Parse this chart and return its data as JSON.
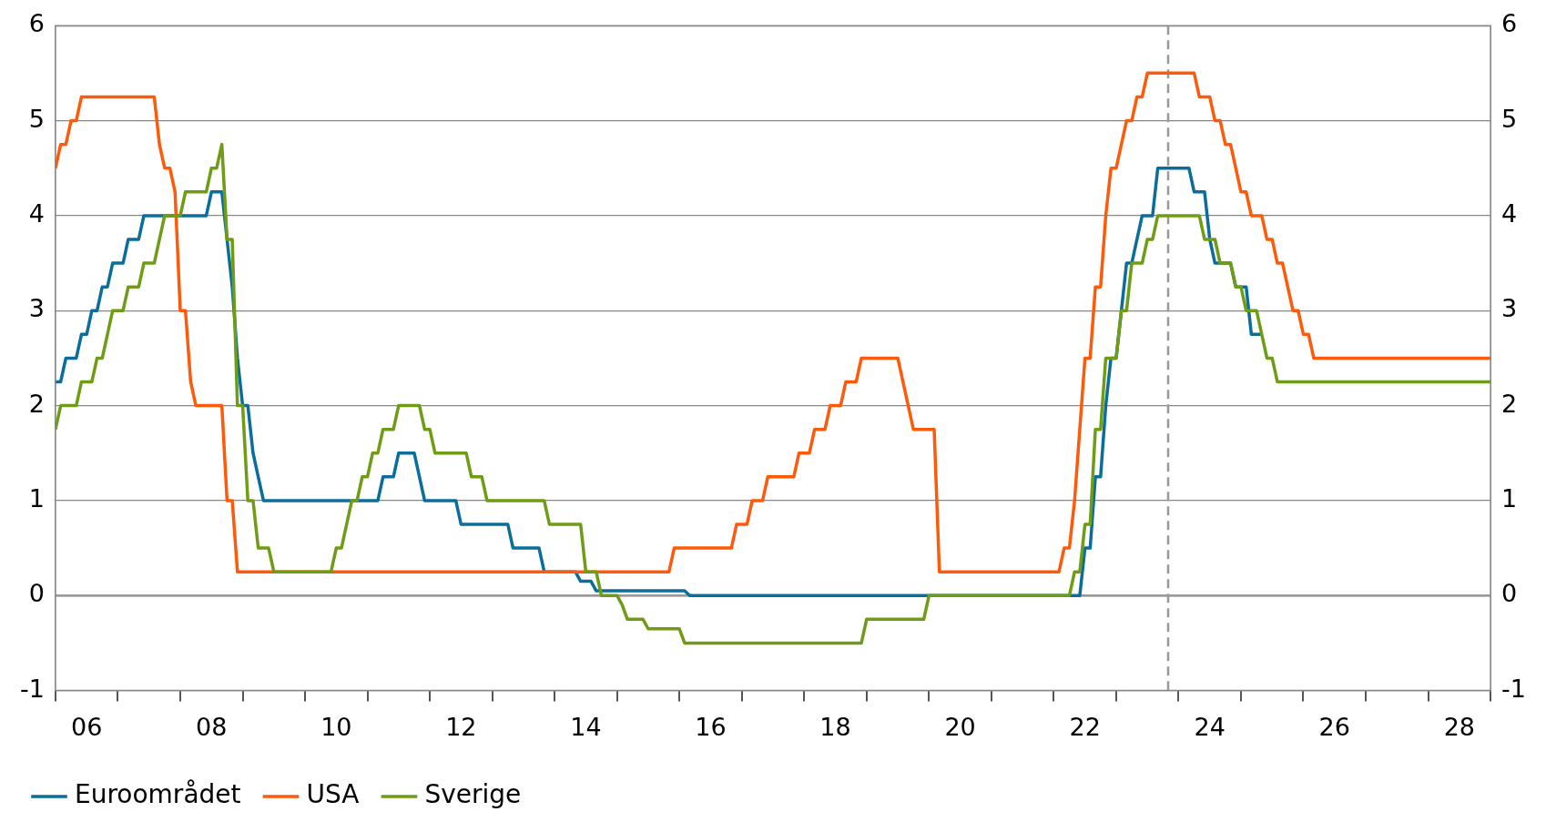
{
  "chart_data": {
    "type": "line",
    "series": [
      {
        "name": "Euroområdet",
        "color": "#0a6e9c",
        "x": [
          "2006-01",
          "2006-02",
          "2006-03",
          "2006-05",
          "2006-06",
          "2006-07",
          "2006-08",
          "2006-09",
          "2006-10",
          "2006-11",
          "2006-12",
          "2007-02",
          "2007-03",
          "2007-05",
          "2007-06",
          "2008-06",
          "2008-07",
          "2008-09",
          "2008-10",
          "2008-11",
          "2008-12",
          "2009-01",
          "2009-02",
          "2009-03",
          "2009-04",
          "2009-05",
          "2011-03",
          "2011-04",
          "2011-06",
          "2011-07",
          "2011-10",
          "2011-11",
          "2011-12",
          "2012-06",
          "2012-07",
          "2013-04",
          "2013-05",
          "2013-10",
          "2013-11",
          "2014-05",
          "2014-06",
          "2014-08",
          "2014-09",
          "2016-02",
          "2016-03",
          "2022-06",
          "2022-07",
          "2022-08",
          "2022-09",
          "2022-10",
          "2022-11",
          "2022-12",
          "2023-01",
          "2023-02",
          "2023-03",
          "2023-04",
          "2023-05",
          "2023-06",
          "2023-08",
          "2023-09",
          "2024-03",
          "2024-04",
          "2024-06",
          "2024-07",
          "2024-08",
          "2024-11",
          "2024-12",
          "2025-02",
          "2025-03",
          "2025-05"
        ],
        "values": [
          2.25,
          2.25,
          2.5,
          2.5,
          2.75,
          2.75,
          3.0,
          3.0,
          3.25,
          3.25,
          3.5,
          3.5,
          3.75,
          3.75,
          4.0,
          4.0,
          4.25,
          4.25,
          3.75,
          3.25,
          2.5,
          2.0,
          2.0,
          1.5,
          1.25,
          1.0,
          1.0,
          1.25,
          1.25,
          1.5,
          1.5,
          1.25,
          1.0,
          1.0,
          0.75,
          0.75,
          0.5,
          0.5,
          0.25,
          0.25,
          0.15,
          0.15,
          0.05,
          0.05,
          0.0,
          0.0,
          0.5,
          0.5,
          1.25,
          1.25,
          2.0,
          2.5,
          2.5,
          3.0,
          3.5,
          3.5,
          3.75,
          4.0,
          4.0,
          4.5,
          4.5,
          4.25,
          4.25,
          3.75,
          3.5,
          3.5,
          3.25,
          3.25,
          2.75,
          2.75
        ]
      },
      {
        "name": "USA",
        "color": "#ff5a0a",
        "x": [
          "2006-01",
          "2006-02",
          "2006-03",
          "2006-04",
          "2006-05",
          "2006-06",
          "2007-08",
          "2007-09",
          "2007-10",
          "2007-11",
          "2007-12",
          "2008-01",
          "2008-02",
          "2008-03",
          "2008-04",
          "2008-09",
          "2008-10",
          "2008-11",
          "2008-12",
          "2015-11",
          "2015-12",
          "2016-11",
          "2016-12",
          "2017-02",
          "2017-03",
          "2017-05",
          "2017-06",
          "2017-11",
          "2017-12",
          "2018-02",
          "2018-03",
          "2018-05",
          "2018-06",
          "2018-08",
          "2018-09",
          "2018-11",
          "2018-12",
          "2019-07",
          "2019-08",
          "2019-09",
          "2019-10",
          "2020-02",
          "2020-03",
          "2022-02",
          "2022-03",
          "2022-04",
          "2022-05",
          "2022-06",
          "2022-07",
          "2022-08",
          "2022-09",
          "2022-10",
          "2022-11",
          "2022-12",
          "2023-01",
          "2023-02",
          "2023-03",
          "2023-04",
          "2023-05",
          "2023-06",
          "2023-07",
          "2024-04",
          "2024-05",
          "2024-07",
          "2024-08",
          "2024-09",
          "2024-10",
          "2024-11",
          "2024-12",
          "2025-01",
          "2025-02",
          "2025-03",
          "2025-05",
          "2025-06",
          "2025-07",
          "2025-08",
          "2025-09",
          "2025-10",
          "2025-11",
          "2025-12",
          "2026-01",
          "2026-02",
          "2026-03",
          "2029-01"
        ],
        "values": [
          4.5,
          4.75,
          4.75,
          5.0,
          5.0,
          5.25,
          5.25,
          4.75,
          4.5,
          4.5,
          4.25,
          3.0,
          3.0,
          2.25,
          2.0,
          2.0,
          1.0,
          1.0,
          0.25,
          0.25,
          0.5,
          0.5,
          0.75,
          0.75,
          1.0,
          1.0,
          1.25,
          1.25,
          1.5,
          1.5,
          1.75,
          1.75,
          2.0,
          2.0,
          2.25,
          2.25,
          2.5,
          2.5,
          2.25,
          2.0,
          1.75,
          1.75,
          0.25,
          0.25,
          0.5,
          0.5,
          1.0,
          1.75,
          2.5,
          2.5,
          3.25,
          3.25,
          4.0,
          4.5,
          4.5,
          4.75,
          5.0,
          5.0,
          5.25,
          5.25,
          5.5,
          5.5,
          5.25,
          5.25,
          5.0,
          5.0,
          4.75,
          4.75,
          4.5,
          4.25,
          4.25,
          4.0,
          4.0,
          3.75,
          3.75,
          3.5,
          3.5,
          3.25,
          3.0,
          3.0,
          2.75,
          2.75,
          2.5,
          2.5
        ]
      },
      {
        "name": "Sverige",
        "color": "#6e9c14",
        "x": [
          "2006-01",
          "2006-02",
          "2006-05",
          "2006-06",
          "2006-08",
          "2006-09",
          "2006-10",
          "2006-11",
          "2006-12",
          "2007-02",
          "2007-03",
          "2007-05",
          "2007-06",
          "2007-08",
          "2007-09",
          "2007-10",
          "2008-01",
          "2008-02",
          "2008-06",
          "2008-07",
          "2008-08",
          "2008-09",
          "2008-10",
          "2008-11",
          "2008-12",
          "2009-01",
          "2009-02",
          "2009-03",
          "2009-04",
          "2009-06",
          "2009-07",
          "2010-06",
          "2010-07",
          "2010-08",
          "2010-09",
          "2010-10",
          "2010-11",
          "2010-12",
          "2011-01",
          "2011-02",
          "2011-03",
          "2011-04",
          "2011-06",
          "2011-07",
          "2011-11",
          "2011-12",
          "2012-01",
          "2012-02",
          "2012-08",
          "2012-09",
          "2012-11",
          "2012-12",
          "2013-11",
          "2013-12",
          "2014-06",
          "2014-07",
          "2014-09",
          "2014-10",
          "2015-01",
          "2015-02",
          "2015-03",
          "2015-06",
          "2015-07",
          "2016-01",
          "2016-02",
          "2018-12",
          "2019-01",
          "2019-12",
          "2020-01",
          "2022-04",
          "2022-05",
          "2022-06",
          "2022-07",
          "2022-08",
          "2022-09",
          "2022-10",
          "2022-11",
          "2023-01",
          "2023-02",
          "2023-03",
          "2023-04",
          "2023-06",
          "2023-07",
          "2023-08",
          "2023-09",
          "2024-05",
          "2024-06",
          "2024-08",
          "2024-09",
          "2024-11",
          "2024-12",
          "2025-01",
          "2025-02",
          "2025-04",
          "2025-05",
          "2025-06",
          "2025-07",
          "2025-08",
          "2029-01"
        ],
        "values": [
          1.75,
          2.0,
          2.0,
          2.25,
          2.25,
          2.5,
          2.5,
          2.75,
          3.0,
          3.0,
          3.25,
          3.25,
          3.5,
          3.5,
          3.75,
          4.0,
          4.0,
          4.25,
          4.25,
          4.5,
          4.5,
          4.75,
          3.75,
          3.75,
          2.0,
          2.0,
          1.0,
          1.0,
          0.5,
          0.5,
          0.25,
          0.25,
          0.5,
          0.5,
          0.75,
          1.0,
          1.0,
          1.25,
          1.25,
          1.5,
          1.5,
          1.75,
          1.75,
          2.0,
          2.0,
          1.75,
          1.75,
          1.5,
          1.5,
          1.25,
          1.25,
          1.0,
          1.0,
          0.75,
          0.75,
          0.25,
          0.25,
          0.0,
          0.0,
          -0.1,
          -0.25,
          -0.25,
          -0.35,
          -0.35,
          -0.5,
          -0.5,
          -0.25,
          -0.25,
          0.0,
          0.0,
          0.25,
          0.25,
          0.75,
          0.75,
          1.75,
          1.75,
          2.5,
          2.5,
          3.0,
          3.0,
          3.5,
          3.5,
          3.75,
          3.75,
          4.0,
          4.0,
          3.75,
          3.75,
          3.5,
          3.5,
          3.25,
          3.25,
          3.0,
          3.0,
          2.75,
          2.5,
          2.5,
          2.25,
          2.25
        ]
      }
    ],
    "xlim": [
      "2006-01",
      "2029-01"
    ],
    "xticks": [
      {
        "value": "2006-01",
        "label": null
      },
      {
        "value": "2006-07",
        "label": "06"
      },
      {
        "value": "2007-01",
        "label": null
      },
      {
        "value": "2008-01",
        "label": null
      },
      {
        "value": "2008-07",
        "label": "08"
      },
      {
        "value": "2009-01",
        "label": null
      },
      {
        "value": "2010-01",
        "label": null
      },
      {
        "value": "2010-07",
        "label": "10"
      },
      {
        "value": "2011-01",
        "label": null
      },
      {
        "value": "2012-01",
        "label": null
      },
      {
        "value": "2012-07",
        "label": "12"
      },
      {
        "value": "2013-01",
        "label": null
      },
      {
        "value": "2014-01",
        "label": null
      },
      {
        "value": "2014-07",
        "label": "14"
      },
      {
        "value": "2015-01",
        "label": null
      },
      {
        "value": "2016-01",
        "label": null
      },
      {
        "value": "2016-07",
        "label": "16"
      },
      {
        "value": "2017-01",
        "label": null
      },
      {
        "value": "2018-01",
        "label": null
      },
      {
        "value": "2018-07",
        "label": "18"
      },
      {
        "value": "2019-01",
        "label": null
      },
      {
        "value": "2020-01",
        "label": null
      },
      {
        "value": "2020-07",
        "label": "20"
      },
      {
        "value": "2021-01",
        "label": null
      },
      {
        "value": "2022-01",
        "label": null
      },
      {
        "value": "2022-07",
        "label": "22"
      },
      {
        "value": "2023-01",
        "label": null
      },
      {
        "value": "2024-01",
        "label": null
      },
      {
        "value": "2024-07",
        "label": "24"
      },
      {
        "value": "2025-01",
        "label": null
      },
      {
        "value": "2026-01",
        "label": null
      },
      {
        "value": "2026-07",
        "label": "26"
      },
      {
        "value": "2027-01",
        "label": null
      },
      {
        "value": "2028-01",
        "label": null
      },
      {
        "value": "2028-07",
        "label": "28"
      },
      {
        "value": "2029-01",
        "label": null
      }
    ],
    "ylim": [
      -1,
      6
    ],
    "yticks": [
      -1,
      0,
      1,
      2,
      3,
      4,
      5,
      6
    ],
    "y2lim": [
      -1,
      6
    ],
    "y2ticks": [
      -1,
      0,
      1,
      2,
      3,
      4,
      5,
      6
    ],
    "grid": "y",
    "legend": "bottom left",
    "marker": "none",
    "line_style": "solid",
    "ref_lines": [
      {
        "axis": "y",
        "value": 0,
        "color": "#999999",
        "line_style": "solid"
      },
      {
        "axis": "x",
        "value": "2023-11",
        "color": "#999999",
        "line_style": "dashed"
      }
    ]
  }
}
